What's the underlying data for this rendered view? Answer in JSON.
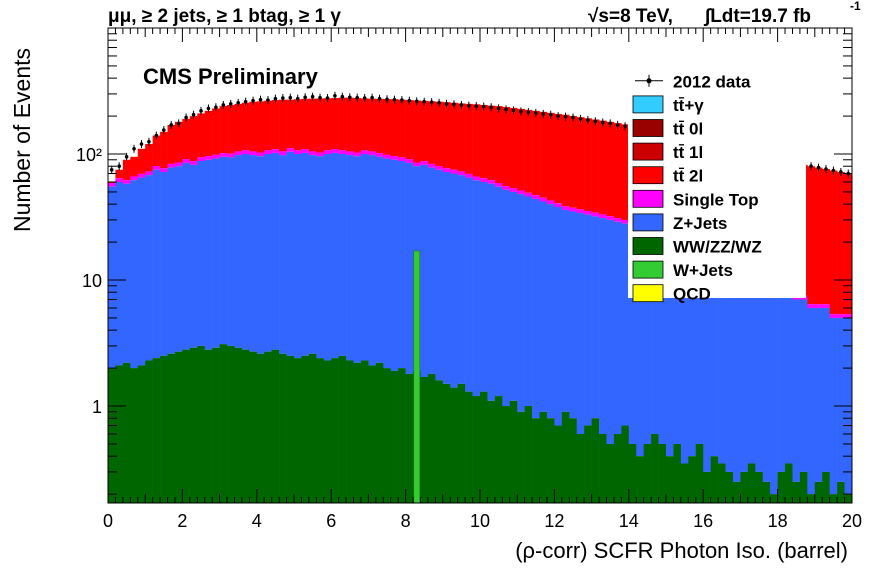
{
  "header": {
    "selection": "μμ, ≥ 2 jets, ≥ 1 btag, ≥ 1 γ",
    "energy": "√s=8 TeV,",
    "lumi": "∫Ldt=19.7 fb",
    "lumi_exp": "-1",
    "experiment": "CMS Preliminary"
  },
  "chart_data": {
    "type": "bar",
    "xlabel": "(ρ-corr) SCFR Photon Iso. (barrel)",
    "ylabel": "Number of Events",
    "xlim": [
      0,
      20
    ],
    "ylim": [
      0.17,
      1000
    ],
    "log_y": true,
    "bin_width": 0.2,
    "x_ticks": [
      "0",
      "2",
      "4",
      "6",
      "8",
      "10",
      "12",
      "14",
      "16",
      "18",
      "20"
    ],
    "y_ticks": [
      {
        "value": 1,
        "label": "1"
      },
      {
        "value": 10,
        "label": "10"
      },
      {
        "value": 100,
        "label": "10²"
      }
    ],
    "legend_position": "top-right",
    "legend": [
      {
        "name": "2012 data",
        "style": "marker"
      },
      {
        "name": "tt̄+γ",
        "style": "box",
        "color": "#33ccff"
      },
      {
        "name": "tt̄ 0l",
        "style": "box",
        "color": "#990000"
      },
      {
        "name": "tt̄ 1l",
        "style": "box",
        "color": "#cc0000"
      },
      {
        "name": "tt̄ 2l",
        "style": "box",
        "color": "#ff0000"
      },
      {
        "name": "Single Top",
        "style": "box",
        "color": "#ff00ff"
      },
      {
        "name": "Z+Jets",
        "style": "box",
        "color": "#3366ff"
      },
      {
        "name": "WW/ZZ/WZ",
        "style": "box",
        "color": "#006600"
      },
      {
        "name": "W+Jets",
        "style": "box",
        "color": "#33cc33"
      },
      {
        "name": "QCD",
        "style": "box",
        "color": "#ffff00"
      }
    ],
    "colors": {
      "ttbar_2l": "#ff0000",
      "single_top": "#ff00ff",
      "z_jets": "#3366ff",
      "diboson": "#006600",
      "w_jets": "#33cc33",
      "data": "#000000"
    },
    "w_jets_spike": {
      "x": 8.3,
      "value": 17
    },
    "total_stack": [
      60,
      75,
      90,
      95,
      110,
      120,
      140,
      150,
      170,
      180,
      190,
      200,
      210,
      220,
      230,
      240,
      245,
      250,
      255,
      260,
      262,
      265,
      268,
      270,
      270,
      272,
      274,
      275,
      276,
      277,
      278,
      280,
      280,
      278,
      276,
      275,
      274,
      273,
      272,
      270,
      268,
      266,
      264,
      262,
      260,
      258,
      255,
      252,
      250,
      248,
      245,
      242,
      240,
      236,
      232,
      228,
      224,
      220,
      216,
      212,
      208,
      205,
      200,
      196,
      192,
      188,
      184,
      180,
      176,
      172,
      168,
      164,
      160,
      156,
      152,
      148,
      144,
      140,
      136,
      132,
      128,
      124,
      120,
      116,
      112,
      108,
      104,
      100,
      96,
      92,
      88,
      86,
      84,
      82,
      80,
      78,
      76,
      74,
      72,
      70
    ],
    "z_jets_top": [
      55,
      60,
      58,
      62,
      65,
      68,
      75,
      72,
      78,
      80,
      85,
      82,
      88,
      90,
      92,
      95,
      94,
      98,
      100,
      98,
      96,
      100,
      102,
      98,
      104,
      100,
      102,
      98,
      96,
      100,
      102,
      100,
      98,
      96,
      100,
      98,
      95,
      92,
      90,
      88,
      85,
      80,
      82,
      78,
      75,
      72,
      70,
      68,
      65,
      62,
      60,
      58,
      55,
      52,
      50,
      48,
      46,
      44,
      42,
      40,
      38,
      36,
      35,
      34,
      33,
      32,
      31,
      30,
      29,
      28,
      27,
      26,
      25,
      24,
      23,
      22,
      21,
      20,
      19,
      18,
      17,
      16,
      15,
      14,
      13,
      12,
      11,
      10,
      9,
      8,
      8,
      8,
      7,
      7,
      6,
      6,
      6,
      5,
      5,
      5
    ],
    "diboson": [
      2.0,
      2.1,
      2.2,
      2.0,
      2.1,
      2.3,
      2.4,
      2.5,
      2.6,
      2.7,
      2.8,
      2.9,
      3.0,
      2.8,
      2.9,
      3.1,
      3.0,
      2.9,
      2.8,
      2.7,
      2.6,
      2.7,
      2.8,
      2.6,
      2.5,
      2.4,
      2.5,
      2.6,
      2.4,
      2.3,
      2.4,
      2.5,
      2.3,
      2.2,
      2.3,
      2.1,
      2.2,
      2.0,
      1.9,
      2.0,
      1.8,
      1.9,
      1.7,
      1.8,
      1.6,
      1.5,
      1.4,
      1.5,
      1.3,
      1.2,
      1.3,
      1.1,
      1.2,
      1.0,
      1.1,
      0.9,
      1.0,
      0.8,
      0.9,
      0.8,
      0.7,
      0.9,
      0.8,
      0.6,
      0.7,
      0.8,
      0.6,
      0.5,
      0.6,
      0.7,
      0.5,
      0.4,
      0.5,
      0.6,
      0.5,
      0.4,
      0.5,
      0.35,
      0.4,
      0.5,
      0.3,
      0.4,
      0.35,
      0.3,
      0.25,
      0.3,
      0.35,
      0.3,
      0.25,
      0.2,
      0.3,
      0.35,
      0.25,
      0.3,
      0.2,
      0.25,
      0.3,
      0.2,
      0.25,
      0.2
    ],
    "data": [
      75,
      80,
      95,
      110,
      120,
      125,
      140,
      155,
      170,
      175,
      195,
      205,
      220,
      230,
      235,
      245,
      250,
      255,
      260,
      265,
      270,
      268,
      275,
      278,
      280,
      275,
      282,
      285,
      280,
      278,
      290,
      285,
      282,
      280,
      278,
      280,
      275,
      272,
      270,
      268,
      265,
      262,
      260,
      258,
      255,
      250,
      248,
      245,
      242,
      240,
      238,
      235,
      230,
      226,
      222,
      218,
      215,
      212,
      208,
      205,
      200,
      198,
      195,
      190,
      186,
      182,
      178,
      175,
      170,
      166,
      162,
      158,
      155,
      150,
      148,
      145,
      140,
      135,
      132,
      128,
      125,
      120,
      118,
      115,
      110,
      106,
      102,
      98,
      94,
      90,
      88,
      86,
      84,
      82,
      80,
      78,
      76,
      74,
      72,
      70
    ]
  }
}
